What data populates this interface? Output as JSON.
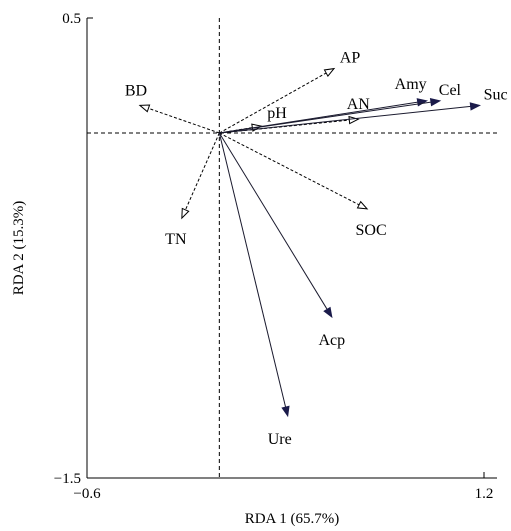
{
  "chart_data": {
    "type": "scatter",
    "title": "",
    "xlabel": "RDA 1 (65.7%)",
    "ylabel": "RDA 2 (15.3%)",
    "xlim": [
      -0.6,
      1.2
    ],
    "ylim": [
      -1.5,
      0.5
    ],
    "x_ticks": [
      {
        "value": -0.6,
        "label": "−0.6"
      },
      {
        "value": 1.2,
        "label": "1.2"
      }
    ],
    "y_ticks": [
      {
        "value": 0.5,
        "label": "0.5"
      },
      {
        "value": -1.5,
        "label": "−1.5"
      }
    ],
    "origin": [
      0.0,
      0.0
    ],
    "reference_lines": {
      "x": 0.0,
      "y": 0.0,
      "style": "dashed"
    },
    "vector_groups": [
      {
        "style": "dashed",
        "arrowhead": "open"
      },
      {
        "style": "solid",
        "arrowhead": "filled"
      }
    ],
    "vectors": [
      {
        "label": "AP",
        "x": 0.52,
        "y": 0.28,
        "group": 0
      },
      {
        "label": "BD",
        "x": -0.36,
        "y": 0.12,
        "group": 0
      },
      {
        "label": "pH",
        "x": 0.19,
        "y": 0.03,
        "group": 0
      },
      {
        "label": "AN",
        "x": 0.63,
        "y": 0.06,
        "group": 0
      },
      {
        "label": "SOC",
        "x": 0.67,
        "y": -0.33,
        "group": 0
      },
      {
        "label": "TN",
        "x": -0.17,
        "y": -0.37,
        "group": 0
      },
      {
        "label": "Amy",
        "x": 0.94,
        "y": 0.14,
        "group": 1
      },
      {
        "label": "Cel",
        "x": 1.0,
        "y": 0.14,
        "group": 1
      },
      {
        "label": "Suc",
        "x": 1.18,
        "y": 0.12,
        "group": 1
      },
      {
        "label": "Acp",
        "x": 0.51,
        "y": -0.8,
        "group": 1
      },
      {
        "label": "Ure",
        "x": 0.31,
        "y": -1.23,
        "group": 1
      }
    ]
  }
}
